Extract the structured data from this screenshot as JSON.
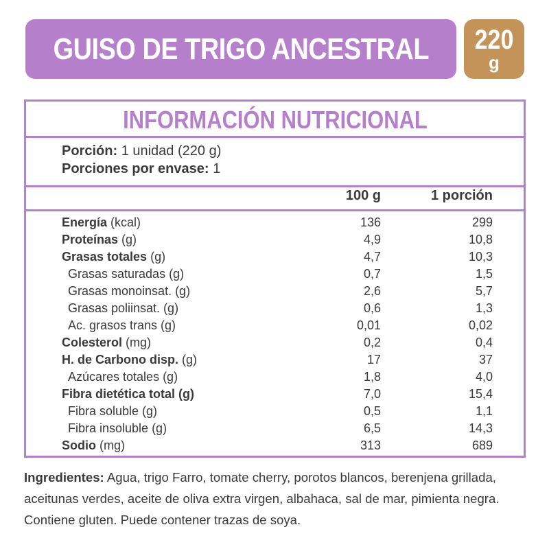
{
  "product": {
    "title": "GUISO DE TRIGO ANCESTRAL",
    "weight_value": "220",
    "weight_unit": "g"
  },
  "colors": {
    "accent": "#b57fcb",
    "badge": "#c4935a",
    "text": "#3a3a3a"
  },
  "nutrition": {
    "title": "INFORMACIÓN NUTRICIONAL",
    "portion_label": "Porción:",
    "portion_value": "1 unidad (220 g)",
    "servings_label": "Porciones por envase:",
    "servings_value": "1",
    "col_100g": "100 g",
    "col_portion": "1 porción",
    "rows": [
      {
        "name": "Energía",
        "unit": "(kcal)",
        "v100": "136",
        "vportion": "299"
      },
      {
        "name": "Proteínas",
        "unit": "(g)",
        "v100": "4,9",
        "vportion": "10,8"
      },
      {
        "name": "Grasas totales",
        "unit": "(g)",
        "v100": "4,7",
        "vportion": "10,3"
      },
      {
        "name": "Grasas saturadas (g)",
        "unit": "",
        "v100": "0,7",
        "vportion": "1,5"
      },
      {
        "name": "Grasas monoinsat. (g)",
        "unit": "",
        "v100": "2,6",
        "vportion": "5,7"
      },
      {
        "name": "Grasas poliinsat. (g)",
        "unit": "",
        "v100": "0,6",
        "vportion": "1,3"
      },
      {
        "name": "Ac. grasos trans (g)",
        "unit": "",
        "v100": "0,01",
        "vportion": "0,02"
      },
      {
        "name": "Colesterol",
        "unit": "(mg)",
        "v100": "0,2",
        "vportion": "0,4"
      },
      {
        "name": "H. de Carbono disp.",
        "unit": "(g)",
        "v100": "17",
        "vportion": "37"
      },
      {
        "name": "Azúcares totales (g)",
        "unit": "",
        "v100": "1,8",
        "vportion": "4,0"
      },
      {
        "name": "Fibra dietética total (g)",
        "unit": "",
        "v100": "7,0",
        "vportion": "15,4"
      },
      {
        "name": "Fibra soluble (g)",
        "unit": "",
        "v100": "0,5",
        "vportion": "1,1"
      },
      {
        "name": "Fibra insoluble (g)",
        "unit": "",
        "v100": "6,5",
        "vportion": "14,3"
      },
      {
        "name": "Sodio",
        "unit": "(mg)",
        "v100": "313",
        "vportion": "689"
      }
    ]
  },
  "ingredients": {
    "label": "Ingredientes:",
    "text": " Agua, trigo Farro, tomate cherry, porotos blancos, berenjena grillada, aceitunas verdes, aceite de oliva extra virgen, albahaca, sal de mar, pimienta negra. Contiene gluten. Puede contener trazas de soya."
  }
}
